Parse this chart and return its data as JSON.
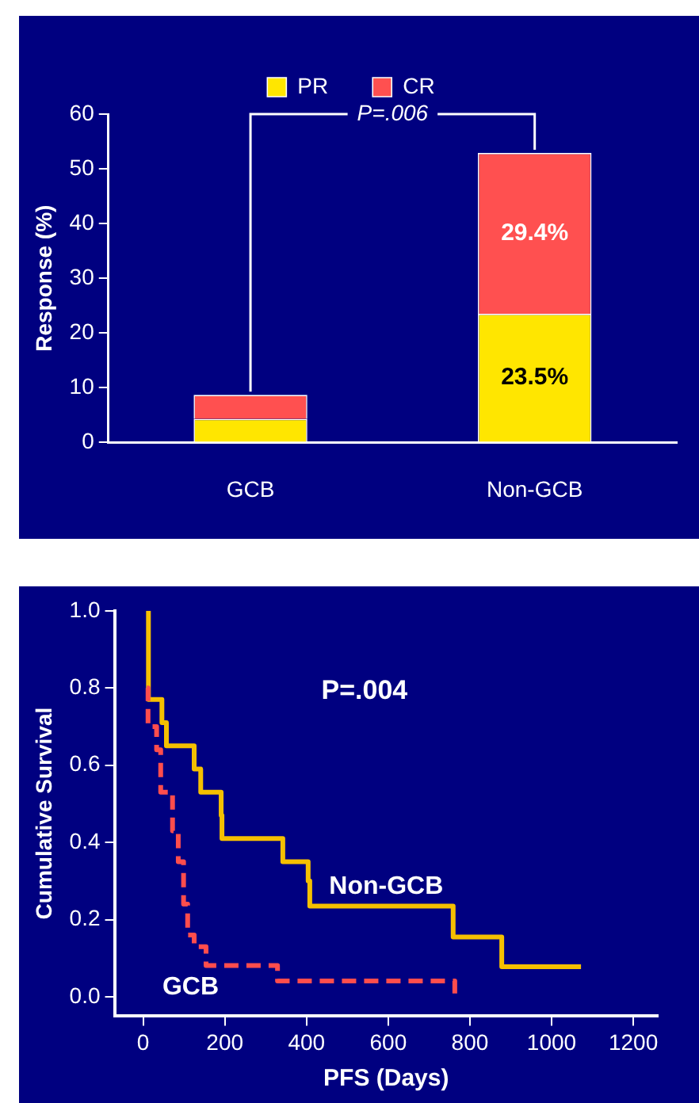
{
  "chart_data": [
    {
      "type": "bar",
      "stacked": true,
      "categories": [
        "GCB",
        "Non-GCB"
      ],
      "ylabel": "Response (%)",
      "ylim": [
        0,
        60
      ],
      "yticks": [
        0,
        10,
        20,
        30,
        40,
        50,
        60
      ],
      "grid": false,
      "legend": "top",
      "annotations": [
        {
          "text": "P=.006",
          "x": "Non-GCB",
          "y": 52.9
        }
      ],
      "series": [
        {
          "name": "PR",
          "color": "#ffe600",
          "values": [
            4.3,
            23.5
          ],
          "value_labels": [
            null,
            "23.5%"
          ]
        },
        {
          "name": "CR",
          "color": "#ff5050",
          "values": [
            4.4,
            29.4
          ],
          "value_labels": [
            null,
            "29.4%"
          ]
        }
      ]
    },
    {
      "type": "step",
      "xlabel": "PFS (Days)",
      "ylabel": "Cumulative Survival",
      "xlim": [
        -70,
        1260
      ],
      "xticks": [
        0,
        200,
        400,
        600,
        800,
        1000,
        1200
      ],
      "ylim": [
        -0.05,
        1.0
      ],
      "yticks": [
        {
          "value": 0,
          "label": "0.0"
        },
        {
          "value": 0.2,
          "label": "0.2"
        },
        {
          "value": 0.4,
          "label": "0.4"
        },
        {
          "value": 0.6,
          "label": "0.6"
        },
        {
          "value": 0.8,
          "label": "0.8"
        },
        {
          "value": 1,
          "label": "1.0"
        }
      ],
      "grid": false,
      "legend": false,
      "marker": "none",
      "annotations": [
        "P=.004"
      ],
      "series": [
        {
          "name": "Non-GCB",
          "color": "#f5c000",
          "line_style": "solid",
          "x": [
            13,
            13,
            46,
            57,
            125,
            141,
            191,
            193,
            342,
            404,
            408,
            596,
            759,
            878,
            1072
          ],
          "values": [
            1,
            0.77,
            0.71,
            0.65,
            0.59,
            0.53,
            0.47,
            0.41,
            0.35,
            0.3,
            0.235,
            0.235,
            0.155,
            0.078,
            0.078
          ]
        },
        {
          "name": "GCB",
          "color": "#ff4d4d",
          "line_style": "dashed",
          "x": [
            9,
            12,
            33,
            43,
            72,
            86,
            99,
            109,
            125,
            154,
            329,
            763
          ],
          "values": [
            0.8,
            0.7,
            0.64,
            0.53,
            0.43,
            0.35,
            0.24,
            0.16,
            0.13,
            0.081,
            0.041,
            0
          ]
        }
      ]
    }
  ]
}
